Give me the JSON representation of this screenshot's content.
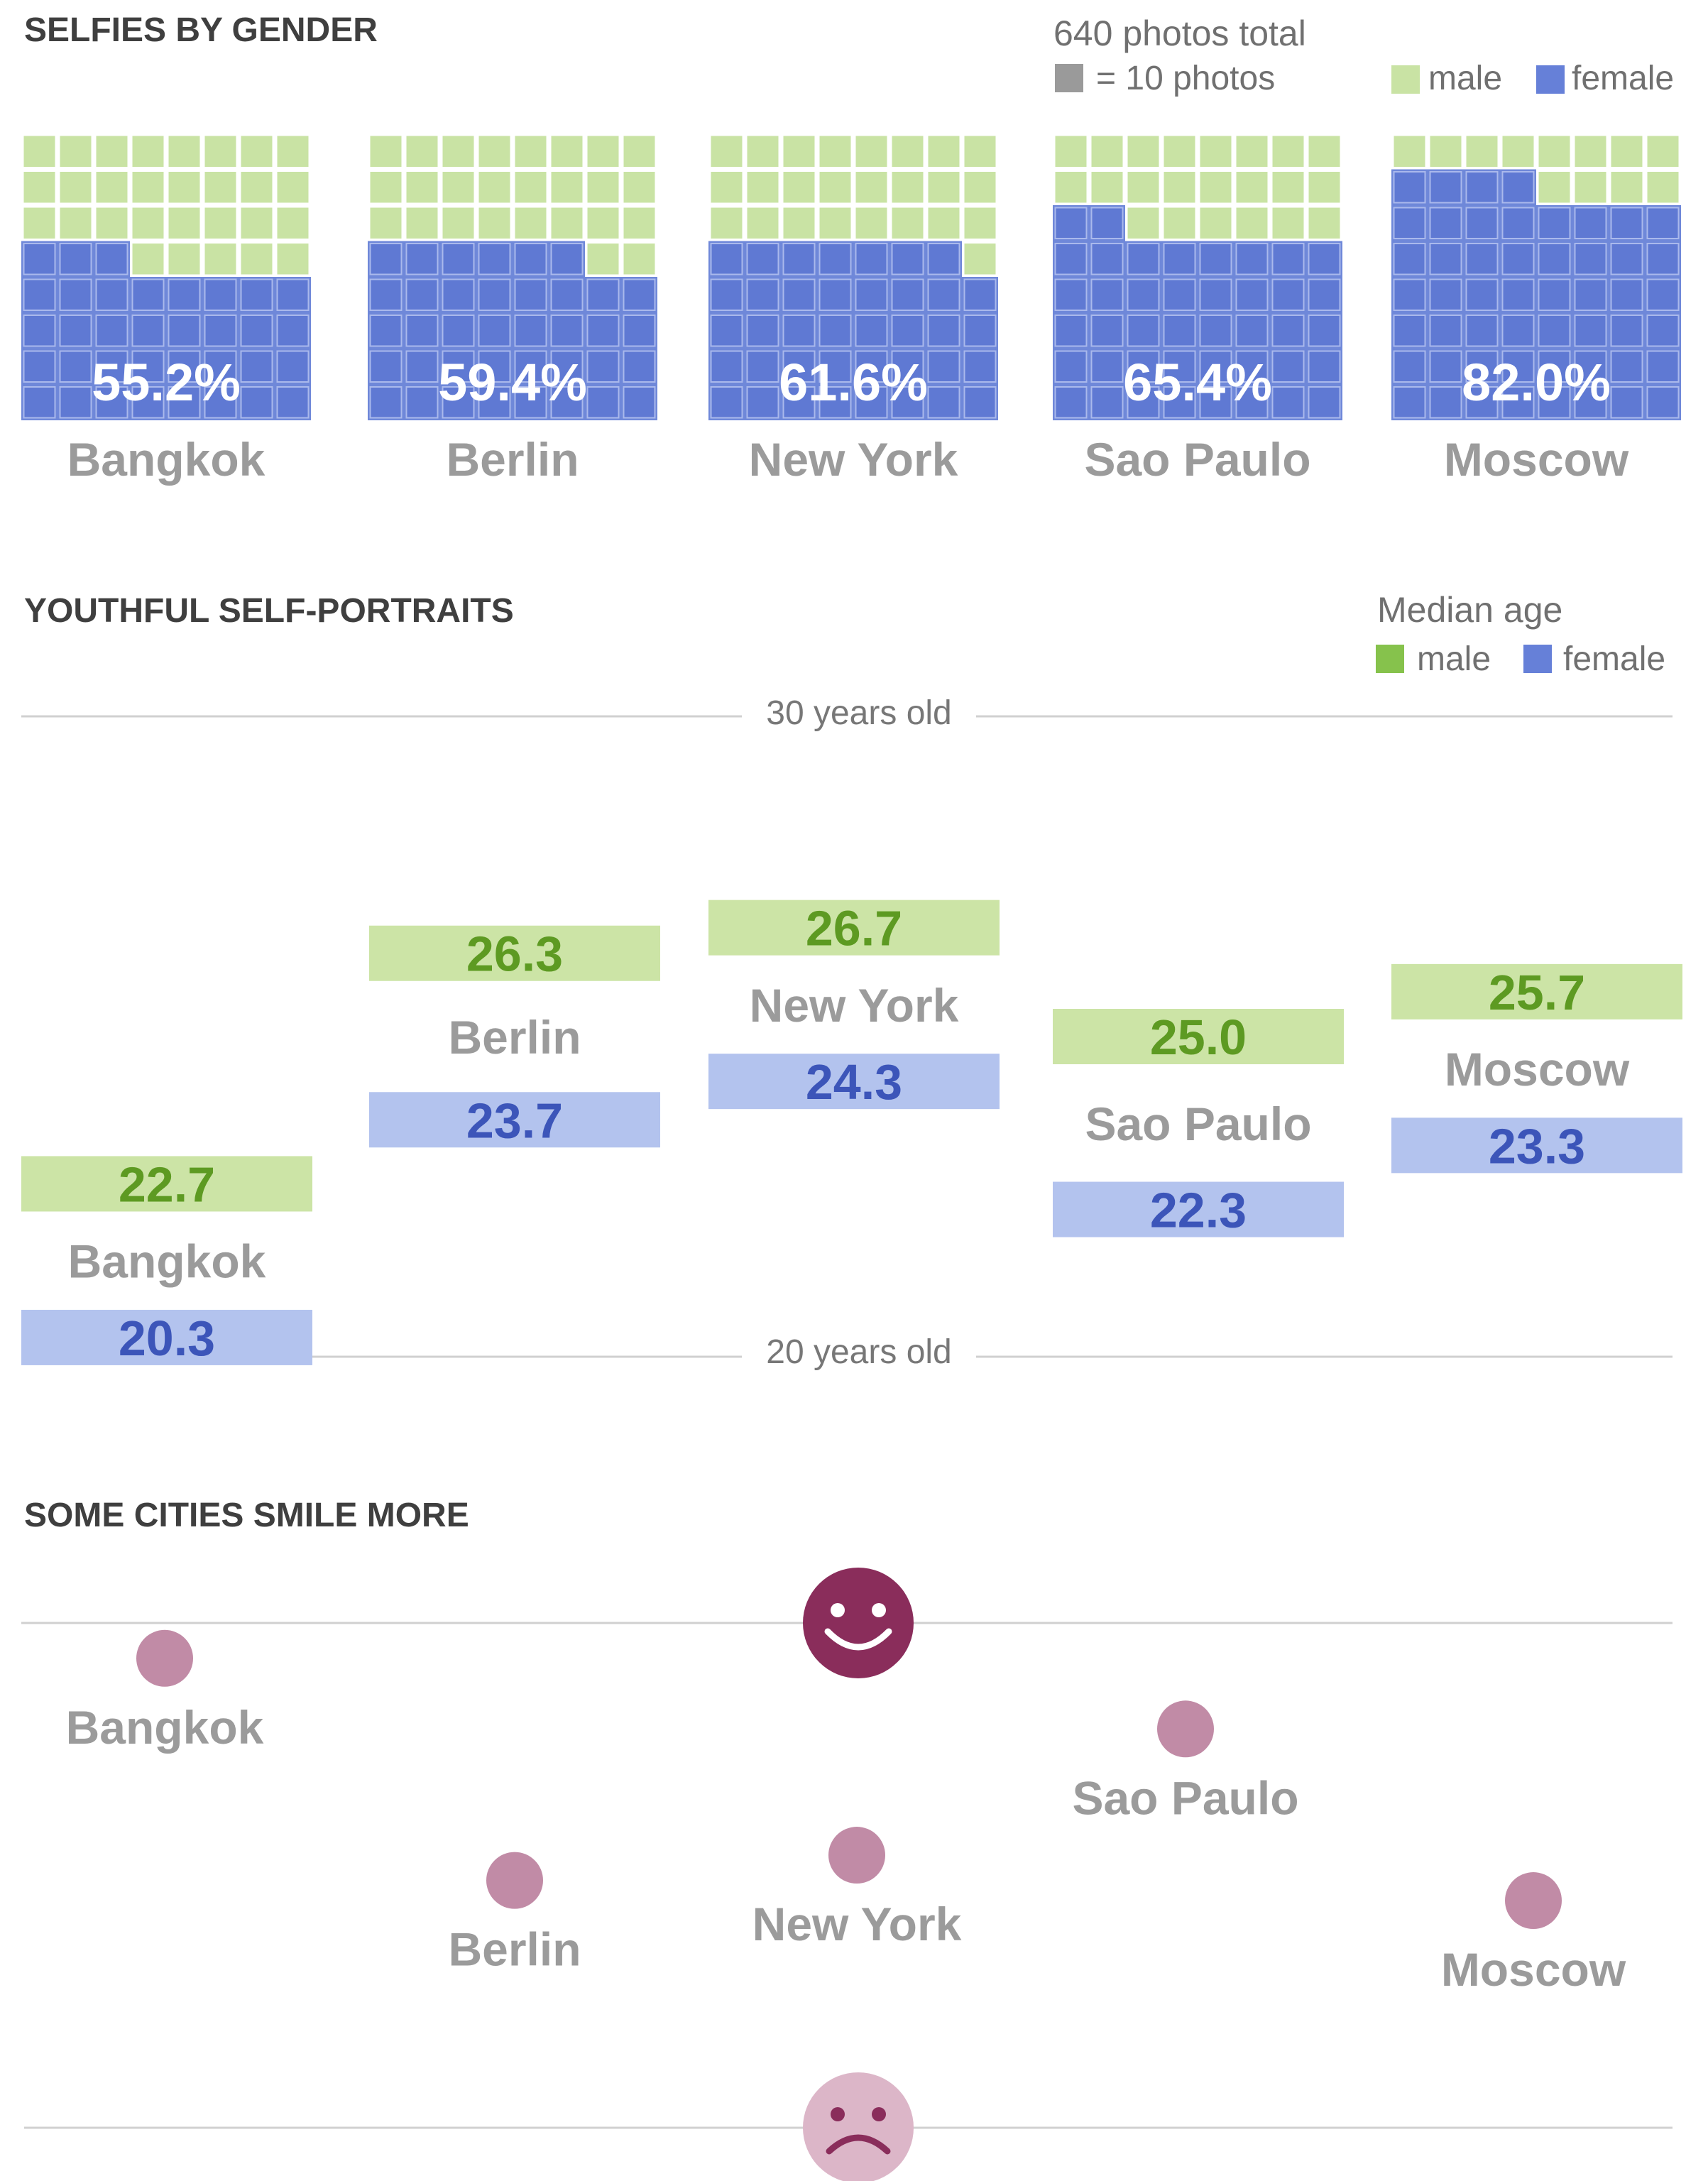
{
  "colors": {
    "male_light": "#c9e3a4",
    "female": "#6f88d9",
    "male_legend": "#86c24c",
    "female_legend": "#6680d8",
    "age_male_box": "#cce4a6",
    "age_female_box": "#b3c3ee",
    "smile_dark": "#8a2d5b",
    "smile_light": "#c18ba6",
    "unit_gray": "#9a9a9a",
    "rule": "#d0d0d0"
  },
  "chart_data": [
    {
      "type": "waffle",
      "title": "SELFIES BY GENDER",
      "note": "640 photos total",
      "unit_label": "= 10 photos",
      "legend": [
        "male",
        "female"
      ],
      "grid": {
        "columns": 8,
        "rows": 8
      },
      "categories": [
        "Bangkok",
        "Berlin",
        "New York",
        "Sao Paulo",
        "Moscow"
      ],
      "series": [
        {
          "name": "female",
          "values": [
            55.2,
            59.4,
            61.6,
            65.4,
            82.0
          ]
        }
      ],
      "value_labels": [
        "55.2%",
        "59.4%",
        "61.6%",
        "65.4%",
        "82.0%"
      ]
    },
    {
      "type": "range",
      "title": "YOUTHFUL SELF-PORTRAITS",
      "legend_title": "Median age",
      "legend": [
        "male",
        "female"
      ],
      "ylim": [
        20,
        30
      ],
      "reference_lines": [
        {
          "value": 30,
          "label": "30 years old"
        },
        {
          "value": 20,
          "label": "20 years old"
        }
      ],
      "categories": [
        "Bangkok",
        "Berlin",
        "New York",
        "Sao Paulo",
        "Moscow"
      ],
      "series": [
        {
          "name": "male",
          "values": [
            22.7,
            26.3,
            26.7,
            25.0,
            25.7
          ]
        },
        {
          "name": "female",
          "values": [
            20.3,
            23.7,
            24.3,
            22.3,
            23.3
          ]
        }
      ]
    },
    {
      "type": "scatter",
      "title": "SOME CITIES SMILE MORE",
      "y_scale": "smile level, 0 = frowning, 1 = smiling",
      "categories": [
        "Bangkok",
        "Berlin",
        "New York",
        "Sao Paulo",
        "Moscow"
      ],
      "values": [
        0.93,
        0.49,
        0.54,
        0.79,
        0.45
      ]
    }
  ]
}
